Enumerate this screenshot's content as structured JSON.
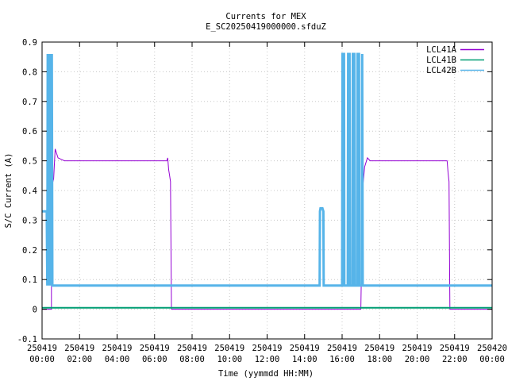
{
  "chart_data": {
    "type": "line",
    "title": "Currents for MEX",
    "subtitle": "E_SC20250419000000.sfduZ",
    "xlabel": "Time (yymmdd HH:MM)",
    "ylabel": "S/C Current (A)",
    "xlim_hours": [
      0,
      24
    ],
    "ylim": [
      -0.1,
      0.9
    ],
    "grid": true,
    "legend_position": "top-right",
    "y_ticks": [
      "-0.1",
      "0",
      "0.1",
      "0.2",
      "0.3",
      "0.4",
      "0.5",
      "0.6",
      "0.7",
      "0.8",
      "0.9"
    ],
    "x_ticks": [
      {
        "hour": 0,
        "date": "250419",
        "time": "00:00"
      },
      {
        "hour": 2,
        "date": "250419",
        "time": "02:00"
      },
      {
        "hour": 4,
        "date": "250419",
        "time": "04:00"
      },
      {
        "hour": 6,
        "date": "250419",
        "time": "06:00"
      },
      {
        "hour": 8,
        "date": "250419",
        "time": "08:00"
      },
      {
        "hour": 10,
        "date": "250419",
        "time": "10:00"
      },
      {
        "hour": 12,
        "date": "250419",
        "time": "12:00"
      },
      {
        "hour": 14,
        "date": "250419",
        "time": "14:00"
      },
      {
        "hour": 16,
        "date": "250419",
        "time": "16:00"
      },
      {
        "hour": 18,
        "date": "250419",
        "time": "18:00"
      },
      {
        "hour": 20,
        "date": "250419",
        "time": "20:00"
      },
      {
        "hour": 22,
        "date": "250419",
        "time": "22:00"
      },
      {
        "hour": 24,
        "date": "250420",
        "time": "00:00"
      }
    ],
    "series": [
      {
        "name": "LCL41A",
        "color": "#9400d3",
        "x_hours": [
          0,
          0.5,
          0.5,
          0.62,
          0.7,
          0.85,
          1.2,
          2.0,
          3.0,
          4.0,
          5.0,
          6.0,
          6.5,
          6.65,
          6.7,
          6.75,
          6.8,
          6.85,
          6.9,
          8.0,
          10.0,
          12.0,
          14.0,
          16.0,
          17.0,
          17.1,
          17.2,
          17.35,
          17.5,
          18.0,
          19.0,
          20.0,
          21.0,
          21.5,
          21.6,
          21.65,
          21.7,
          21.75,
          22.0,
          24.0
        ],
        "y": [
          0.0,
          0.0,
          0.41,
          0.44,
          0.54,
          0.51,
          0.5,
          0.5,
          0.5,
          0.5,
          0.5,
          0.5,
          0.5,
          0.5,
          0.51,
          0.47,
          0.45,
          0.43,
          0.0,
          0.0,
          0.0,
          0.0,
          0.0,
          0.0,
          0.0,
          0.41,
          0.48,
          0.51,
          0.5,
          0.5,
          0.5,
          0.5,
          0.5,
          0.5,
          0.5,
          0.46,
          0.43,
          0.0,
          0.0,
          0.0
        ]
      },
      {
        "name": "LCL41B",
        "color": "#009e73",
        "x_hours": [
          0,
          24
        ],
        "y": [
          0.005,
          0.005
        ]
      },
      {
        "name": "LCL42B",
        "color": "#56b4e9",
        "x_hours": [
          0,
          0.25,
          0.28,
          0.3,
          0.32,
          0.36,
          0.38,
          0.42,
          0.44,
          0.47,
          0.49,
          0.52,
          0.55,
          14.8,
          14.82,
          14.85,
          14.95,
          15.0,
          15.02,
          16.0,
          16.02,
          16.05,
          16.08,
          16.1,
          16.12,
          16.3,
          16.32,
          16.35,
          16.38,
          16.4,
          16.42,
          16.55,
          16.57,
          16.6,
          16.63,
          16.65,
          16.67,
          16.8,
          16.82,
          16.85,
          16.88,
          16.9,
          16.92,
          17.05,
          17.07,
          17.1,
          24.0
        ],
        "y": [
          0.33,
          0.33,
          0.08,
          0.86,
          0.08,
          0.86,
          0.08,
          0.86,
          0.08,
          0.86,
          0.08,
          0.86,
          0.08,
          0.08,
          0.33,
          0.34,
          0.34,
          0.33,
          0.08,
          0.08,
          0.86,
          0.86,
          0.86,
          0.86,
          0.08,
          0.08,
          0.86,
          0.86,
          0.86,
          0.86,
          0.08,
          0.08,
          0.86,
          0.86,
          0.86,
          0.86,
          0.08,
          0.08,
          0.86,
          0.86,
          0.86,
          0.86,
          0.08,
          0.08,
          0.86,
          0.08,
          0.08
        ]
      }
    ]
  }
}
